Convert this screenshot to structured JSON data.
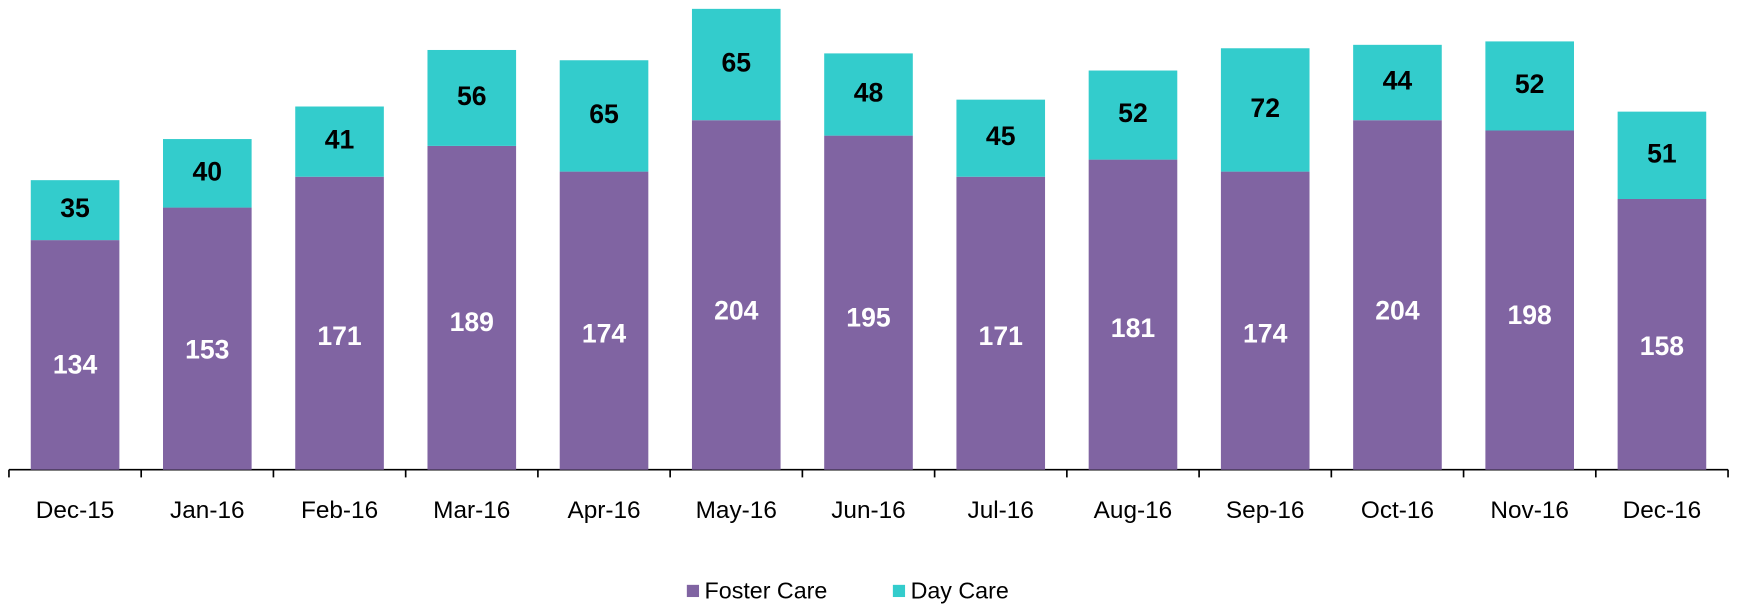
{
  "chart_data": {
    "type": "bar",
    "stacked": true,
    "categories": [
      "Dec-15",
      "Jan-16",
      "Feb-16",
      "Mar-16",
      "Apr-16",
      "May-16",
      "Jun-16",
      "Jul-16",
      "Aug-16",
      "Sep-16",
      "Oct-16",
      "Nov-16",
      "Dec-16"
    ],
    "series": [
      {
        "name": "Foster Care",
        "color": "#8064a2",
        "values": [
          134,
          153,
          171,
          189,
          174,
          204,
          195,
          171,
          181,
          174,
          204,
          198,
          158
        ]
      },
      {
        "name": "Day Care",
        "color": "#33cccc",
        "values": [
          35,
          40,
          41,
          56,
          65,
          65,
          48,
          45,
          52,
          72,
          44,
          52,
          51
        ]
      }
    ],
    "legend": "bottom"
  }
}
